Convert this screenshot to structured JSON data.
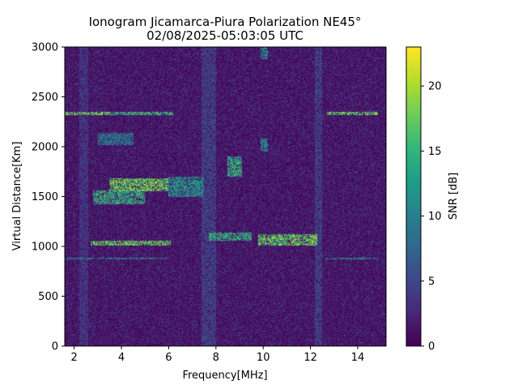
{
  "chart_data": {
    "type": "heatmap",
    "title": "Ionogram Jicamarca-Piura Polarization NE45°",
    "subtitle": "02/08/2025-05:03:05 UTC",
    "xlabel": "Frequency[MHz]",
    "ylabel": "Virtual Distance[Km]",
    "colorbar_label": "SNR [dB]",
    "colormap": "viridis",
    "xlim": [
      1.6,
      15.2
    ],
    "ylim": [
      0,
      3000
    ],
    "zlim": [
      0,
      23
    ],
    "x_ticks": [
      2,
      4,
      6,
      8,
      10,
      12,
      14
    ],
    "x_tick_labels": [
      "2",
      "4",
      "6",
      "8",
      "10",
      "12",
      "14"
    ],
    "y_ticks": [
      0,
      500,
      1000,
      1500,
      2000,
      2500,
      3000
    ],
    "y_tick_labels": [
      "0",
      "500",
      "1000",
      "1500",
      "2000",
      "2500",
      "3000"
    ],
    "colorbar_ticks": [
      0,
      5,
      10,
      15,
      20
    ],
    "colorbar_tick_labels": [
      "0",
      "5",
      "10",
      "15",
      "20"
    ],
    "background_snr": [
      0,
      4
    ],
    "features": [
      {
        "x_range": [
          2.7,
          6.1
        ],
        "y_range": [
          1010,
          1060
        ],
        "snr": 22
      },
      {
        "x_range": [
          9.8,
          12.3
        ],
        "y_range": [
          1010,
          1120
        ],
        "snr": 22
      },
      {
        "x_range": [
          7.7,
          9.5
        ],
        "y_range": [
          1060,
          1140
        ],
        "snr": 18
      },
      {
        "x_range": [
          2.8,
          5.0
        ],
        "y_range": [
          1420,
          1560
        ],
        "snr": 18
      },
      {
        "x_range": [
          3.5,
          6.0
        ],
        "y_range": [
          1550,
          1680
        ],
        "snr": 22
      },
      {
        "x_range": [
          6.0,
          7.5
        ],
        "y_range": [
          1500,
          1700
        ],
        "snr": 15
      },
      {
        "x_range": [
          8.5,
          9.1
        ],
        "y_range": [
          1700,
          1900
        ],
        "snr": 18
      },
      {
        "x_range": [
          3.0,
          4.5
        ],
        "y_range": [
          2020,
          2140
        ],
        "snr": 12
      },
      {
        "x_range": [
          1.6,
          3.6
        ],
        "y_range": [
          2320,
          2350
        ],
        "snr": 22
      },
      {
        "x_range": [
          3.6,
          6.2
        ],
        "y_range": [
          2320,
          2350
        ],
        "snr": 19
      },
      {
        "x_range": [
          12.7,
          14.9
        ],
        "y_range": [
          2320,
          2350
        ],
        "snr": 22
      },
      {
        "x_range": [
          1.6,
          6.0
        ],
        "y_range": [
          870,
          890
        ],
        "snr": 13
      },
      {
        "x_range": [
          12.6,
          14.9
        ],
        "y_range": [
          870,
          890
        ],
        "snr": 13
      },
      {
        "x_range": [
          9.9,
          10.2
        ],
        "y_range": [
          1950,
          2080
        ],
        "snr": 14
      },
      {
        "x_range": [
          9.9,
          10.2
        ],
        "y_range": [
          2880,
          3000
        ],
        "snr": 14
      },
      {
        "x_range": [
          7.4,
          8.0
        ],
        "y_range": [
          0,
          3000
        ],
        "snr": 6
      },
      {
        "x_range": [
          12.2,
          12.5
        ],
        "y_range": [
          0,
          3000
        ],
        "snr": 6
      },
      {
        "x_range": [
          2.2,
          2.6
        ],
        "y_range": [
          0,
          3000
        ],
        "snr": 5
      }
    ]
  }
}
